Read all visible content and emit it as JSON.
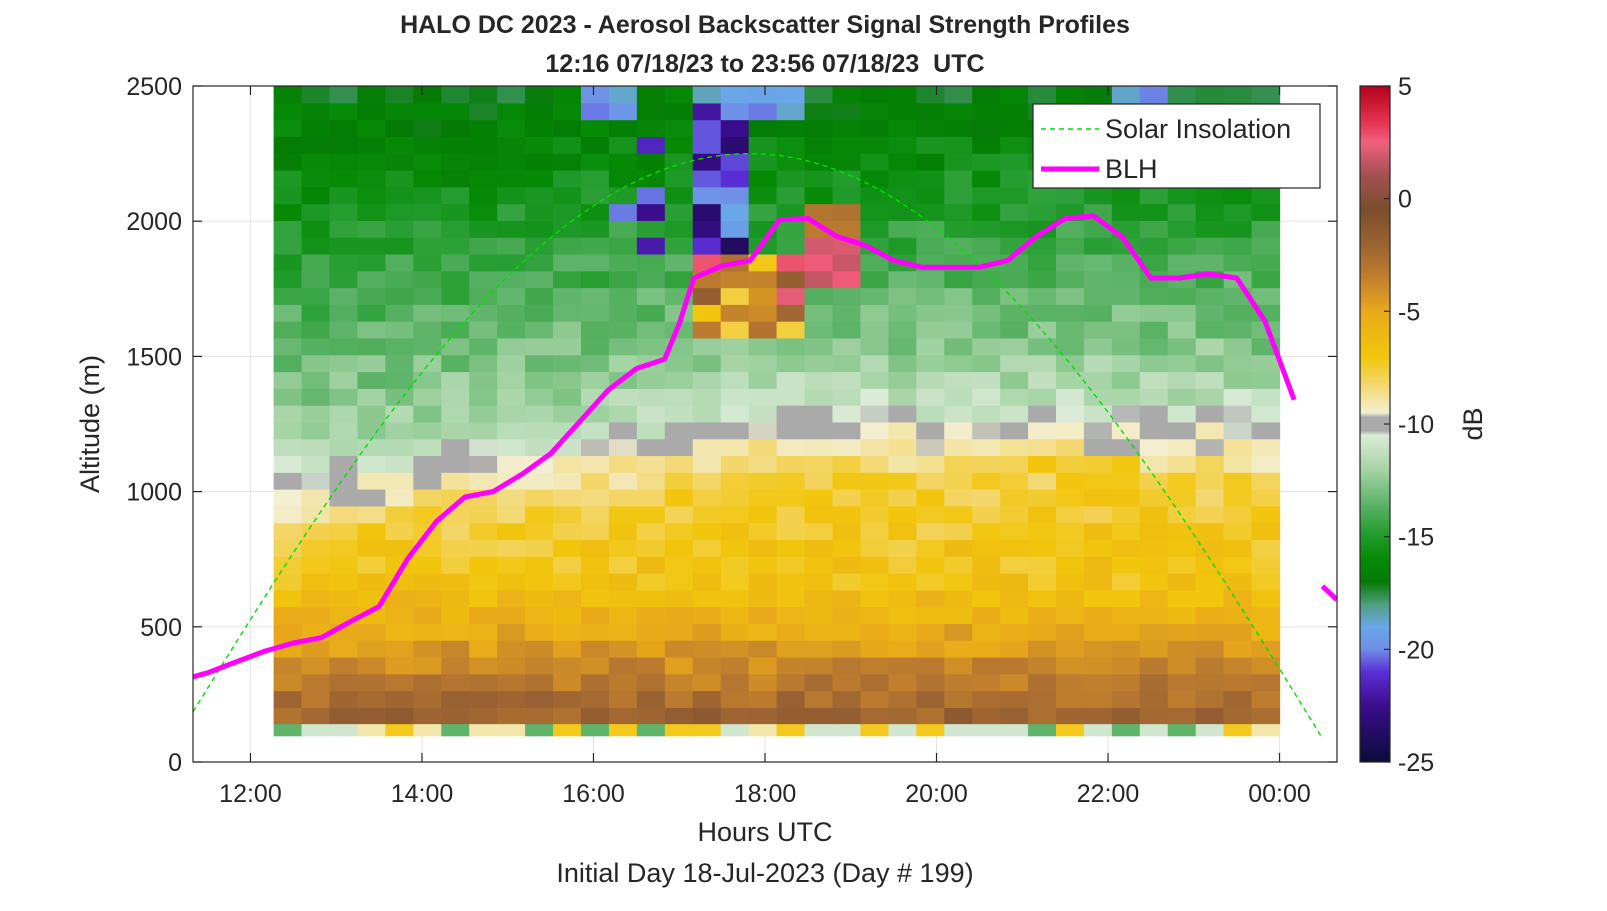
{
  "chart_data": {
    "type": "heatmap",
    "title": "HALO DC 2023 - Aerosol Backscatter Signal Strength Profiles",
    "subtitle": "12:16 07/18/23 to 23:56 07/18/23  UTC",
    "xlabel": "Hours UTC",
    "ylabel": "Altitude (m)",
    "footer": "Initial Day 18-Jul-2023 (Day # 199)",
    "colorbar_label": "dB",
    "colorbar_range": [
      -25,
      5
    ],
    "colorbar_ticks": [
      "5",
      "0",
      "-5",
      "-10",
      "-15",
      "-20",
      "-25"
    ],
    "colorbar_tick_values": [
      5,
      0,
      -5,
      -10,
      -15,
      -20,
      -25
    ],
    "xlim": [
      11.33,
      24.67
    ],
    "ylim": [
      0,
      2500
    ],
    "x_ticks": [
      "12:00",
      "14:00",
      "16:00",
      "18:00",
      "20:00",
      "22:00",
      "00:00"
    ],
    "x_tick_values": [
      12,
      14,
      16,
      18,
      20,
      22,
      24
    ],
    "y_ticks": [
      "0",
      "500",
      "1000",
      "1500",
      "2000",
      "2500"
    ],
    "y_tick_values": [
      0,
      500,
      1000,
      1500,
      2000,
      2500
    ],
    "grid": true,
    "legend": {
      "placement": "top-right",
      "entries": [
        {
          "label": "Solar Insolation",
          "color": "#00e000",
          "style": "dashed"
        },
        {
          "label": "BLH",
          "color": "#ff00ff",
          "style": "solid"
        }
      ]
    },
    "heatmap": {
      "x_start": 12.27,
      "x_end": 24.0,
      "columns": 36,
      "y_start": 140,
      "y_end": 2500,
      "rows": 38,
      "bottom_row_range": [
        140,
        95
      ]
    },
    "series": [
      {
        "name": "BLH",
        "color": "#ff00ff",
        "x": [
          11.33,
          11.5,
          11.83,
          12.17,
          12.5,
          12.83,
          13.17,
          13.5,
          13.83,
          14.17,
          14.5,
          14.83,
          15.17,
          15.5,
          15.83,
          16.17,
          16.5,
          16.83,
          17.0,
          17.17,
          17.5,
          17.83,
          18.17,
          18.5,
          18.83,
          19.17,
          19.5,
          19.83,
          20.17,
          20.5,
          20.83,
          21.17,
          21.5,
          21.83,
          22.17,
          22.5,
          22.83,
          23.17,
          23.5,
          23.83,
          24.17
        ],
        "y": [
          315,
          330,
          370,
          410,
          440,
          460,
          520,
          575,
          750,
          890,
          980,
          1000,
          1065,
          1140,
          1255,
          1375,
          1455,
          1490,
          1620,
          1790,
          1835,
          1855,
          2005,
          2010,
          1945,
          1910,
          1855,
          1830,
          1830,
          1830,
          1855,
          1945,
          2010,
          2020,
          1940,
          1790,
          1790,
          1805,
          1790,
          1630,
          1340
        ]
      },
      {
        "name": "BLH",
        "color": "#ff00ff",
        "x": [
          24.5,
          24.67
        ],
        "y": [
          650,
          600
        ]
      },
      {
        "name": "Solar Insolation",
        "color": "#00e000",
        "x_range": [
          11.33,
          24.5
        ],
        "peak_x": 17.82,
        "peak_y": 2250
      }
    ]
  },
  "colors": {
    "blh": "#ff00ff",
    "solar": "#00e000",
    "colormap": [
      [
        -25,
        "#0b0b3a"
      ],
      [
        -22.5,
        "#3a0d8c"
      ],
      [
        -21,
        "#5b2fd6"
      ],
      [
        -20,
        "#6e8ee6"
      ],
      [
        -19,
        "#6aa8e8"
      ],
      [
        -18,
        "#4f9e7e"
      ],
      [
        -17,
        "#057a05"
      ],
      [
        -16,
        "#068a06"
      ],
      [
        -15,
        "#1f9a2a"
      ],
      [
        -13.5,
        "#5fb46a"
      ],
      [
        -12,
        "#a6d4a6"
      ],
      [
        -10.5,
        "#dcebd8"
      ],
      [
        -10.3,
        "#aaaaaa"
      ],
      [
        -9.7,
        "#aaaaaa"
      ],
      [
        -9.5,
        "#f3efd2"
      ],
      [
        -8,
        "#f3d35a"
      ],
      [
        -7,
        "#f2c60d"
      ],
      [
        -5,
        "#e9a91a"
      ],
      [
        -3.5,
        "#c07e2e"
      ],
      [
        -2,
        "#9a6233"
      ],
      [
        -0.5,
        "#7a4e2b"
      ],
      [
        1,
        "#a05050"
      ],
      [
        2.5,
        "#f0607e"
      ],
      [
        3.5,
        "#e0304a"
      ],
      [
        5,
        "#b5001c"
      ]
    ]
  }
}
